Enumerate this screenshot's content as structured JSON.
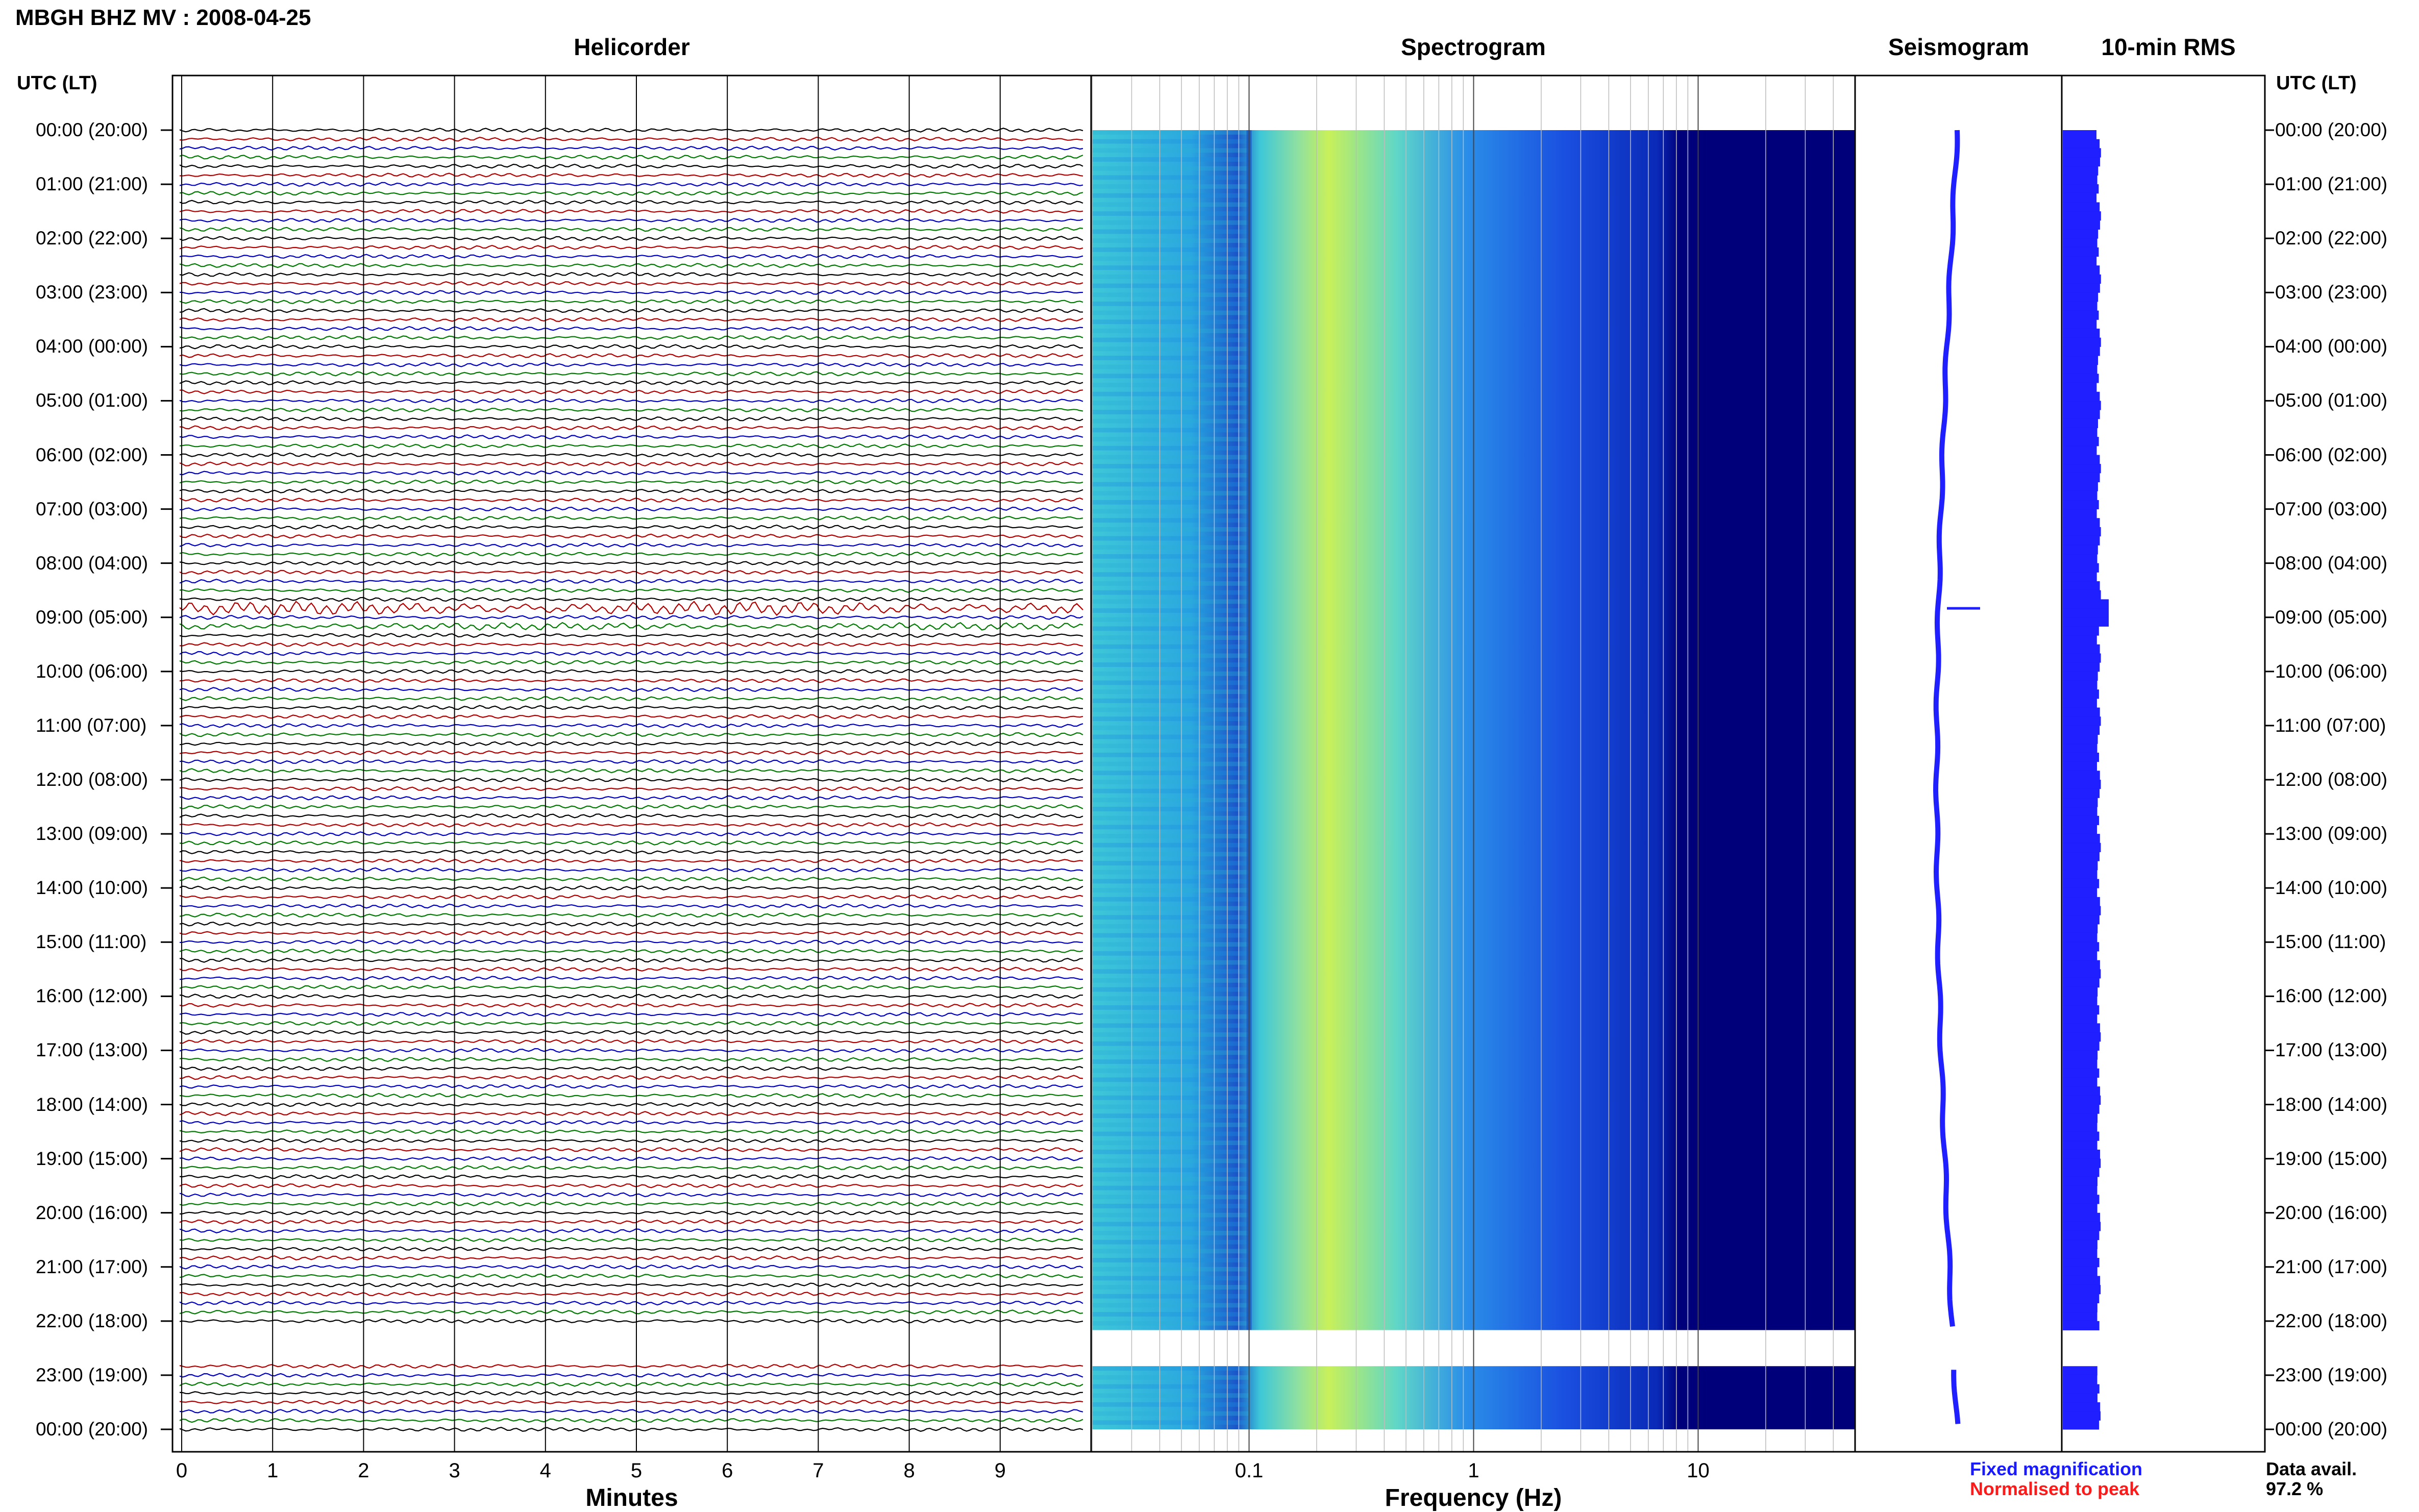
{
  "header": {
    "title": "MBGH BHZ MV : 2008-04-25",
    "utc_label_left": "UTC (LT)",
    "utc_label_right": "UTC (LT)"
  },
  "panels": {
    "helicorder": "Helicorder",
    "spectrogram": "Spectrogram",
    "seismogram": "Seismogram",
    "rms": "10-min RMS"
  },
  "colors": {
    "trace_cycle": [
      "#000000",
      "#b00000",
      "#0000c0",
      "#007a00"
    ],
    "spectrogram_low": "#00007a",
    "spectrogram_mid": "#3ec7d8",
    "spectrogram_high": "#c8f05a",
    "seismogram": "#1f1fff",
    "rms": "#1f1fff",
    "legend_fixed": "#1a1aff",
    "legend_normalised": "#ff1a1a"
  },
  "chart_data": [
    {
      "type": "line",
      "panel": "Helicorder",
      "xlabel": "Minutes",
      "x_ticks": [
        "0",
        "1",
        "2",
        "3",
        "4",
        "5",
        "6",
        "7",
        "8",
        "9"
      ],
      "xlim": [
        0,
        10
      ],
      "row_minutes": 10,
      "rows_per_hour": 6,
      "events": [
        {
          "time_utc": "08:50",
          "description": "large amplitude trace"
        },
        {
          "time_utc": "09:10",
          "description": "small spikes"
        }
      ]
    },
    {
      "type": "heatmap",
      "panel": "Spectrogram",
      "xlabel": "Frequency (Hz)",
      "x_ticks": [
        "0.1",
        "1",
        "10"
      ],
      "x_scale": "log",
      "xlim": [
        0.02,
        50
      ],
      "peak_frequency_hz": 0.3,
      "gap_utc": [
        "22:10",
        "22:50"
      ]
    },
    {
      "type": "line",
      "panel": "Seismogram",
      "gap_utc": [
        "22:10",
        "22:50"
      ]
    },
    {
      "type": "bar",
      "panel": "10-min RMS",
      "gap_utc": [
        "22:10",
        "22:50"
      ]
    }
  ],
  "time_axis": {
    "labels": [
      "00:00 (20:00)",
      "01:00 (21:00)",
      "02:00 (22:00)",
      "03:00 (23:00)",
      "04:00 (00:00)",
      "05:00 (01:00)",
      "06:00 (02:00)",
      "07:00 (03:00)",
      "08:00 (04:00)",
      "09:00 (05:00)",
      "10:00 (06:00)",
      "11:00 (07:00)",
      "12:00 (08:00)",
      "13:00 (09:00)",
      "14:00 (10:00)",
      "15:00 (11:00)",
      "16:00 (12:00)",
      "17:00 (13:00)",
      "18:00 (14:00)",
      "19:00 (15:00)",
      "20:00 (16:00)",
      "21:00 (17:00)",
      "22:00 (18:00)",
      "23:00 (19:00)",
      "00:00 (20:00)"
    ]
  },
  "legend": {
    "fixed": "Fixed magnification",
    "normalised": "Normalised to peak"
  },
  "availability": {
    "label": "Data avail.",
    "value": "97.2 %"
  }
}
